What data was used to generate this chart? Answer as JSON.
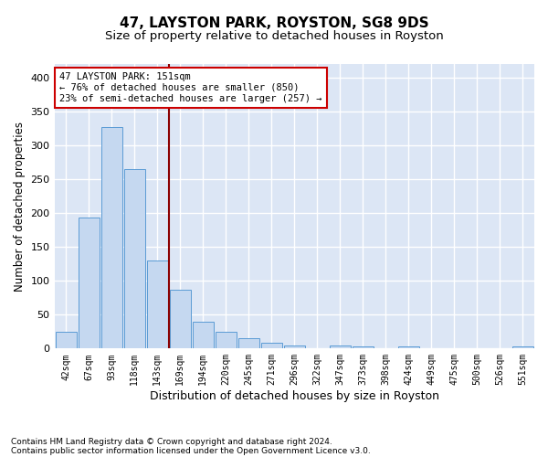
{
  "title": "47, LAYSTON PARK, ROYSTON, SG8 9DS",
  "subtitle": "Size of property relative to detached houses in Royston",
  "xlabel": "Distribution of detached houses by size in Royston",
  "ylabel": "Number of detached properties",
  "footnote1": "Contains HM Land Registry data © Crown copyright and database right 2024.",
  "footnote2": "Contains public sector information licensed under the Open Government Licence v3.0.",
  "bar_labels": [
    "42sqm",
    "67sqm",
    "93sqm",
    "118sqm",
    "143sqm",
    "169sqm",
    "194sqm",
    "220sqm",
    "245sqm",
    "271sqm",
    "296sqm",
    "322sqm",
    "347sqm",
    "373sqm",
    "398sqm",
    "424sqm",
    "449sqm",
    "475sqm",
    "500sqm",
    "526sqm",
    "551sqm"
  ],
  "bar_values": [
    25,
    193,
    327,
    265,
    130,
    87,
    40,
    25,
    15,
    8,
    5,
    0,
    5,
    3,
    0,
    3,
    0,
    0,
    0,
    0,
    3
  ],
  "bar_color": "#c5d8f0",
  "bar_edge_color": "#5b9bd5",
  "vline_x": 4.5,
  "vline_color": "#8b0000",
  "annotation_text": "47 LAYSTON PARK: 151sqm\n← 76% of detached houses are smaller (850)\n23% of semi-detached houses are larger (257) →",
  "annotation_box_color": "white",
  "annotation_box_edge_color": "#cc0000",
  "ylim": [
    0,
    420
  ],
  "yticks": [
    0,
    50,
    100,
    150,
    200,
    250,
    300,
    350,
    400
  ],
  "background_color": "#dce6f5",
  "grid_color": "white",
  "title_fontsize": 11,
  "subtitle_fontsize": 9.5,
  "ylabel_fontsize": 8.5,
  "xlabel_fontsize": 9,
  "tick_fontsize": 7,
  "annotation_fontsize": 7.5,
  "footnote_fontsize": 6.5
}
